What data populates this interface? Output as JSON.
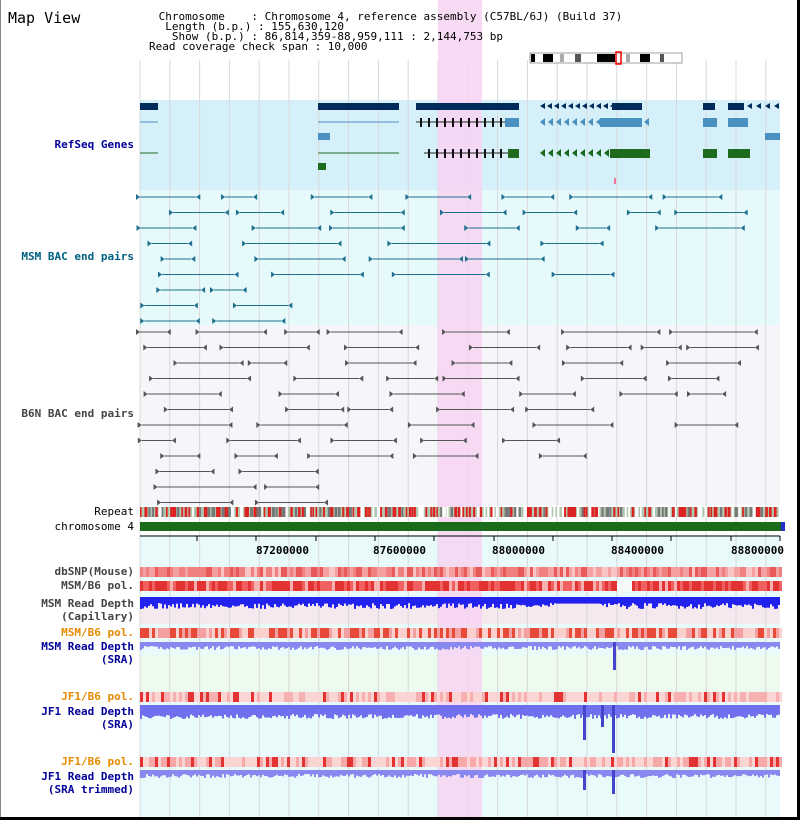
{
  "view_title": "Map View",
  "info": {
    "chromosome_line": " Chromosome    : Chromosome 4, reference assembly (C57BL/6J) (Build 37)",
    "length_line": "  Length (b.p.) : 155,630,120",
    "show_line": "   Show (b.p.) : 86,814,359-88,959,111 : 2,144,753 bp",
    "read_coverage_line": "Read coverage check span : 10,000"
  },
  "tracks": {
    "refseq": "RefSeq Genes",
    "msm_bac": "MSM BAC end pairs",
    "b6n_bac": "B6N BAC end pairs",
    "repeat": "Repeat",
    "chromosome": "chromosome 4",
    "dbsnp": "dbSNP(Mouse)",
    "msm_b6_pol_1": "MSM/B6 pol.",
    "msm_read_depth_cap_1": "MSM Read Depth",
    "msm_read_depth_cap_2": "(Capillary)",
    "msm_b6_pol_2": "MSM/B6 pol.",
    "msm_read_depth_sra_1": "MSM Read Depth",
    "msm_read_depth_sra_2": "(SRA)",
    "jf1_b6_pol_1": "JF1/B6 pol.",
    "jf1_read_depth_sra_1": "JF1 Read Depth",
    "jf1_read_depth_sra_2": "(SRA)",
    "jf1_b6_pol_2": "JF1/B6 pol.",
    "jf1_read_depth_trim_1": "JF1 Read Depth",
    "jf1_read_depth_trim_2": "(SRA trimmed)"
  },
  "axis": {
    "ticks": [
      "87200000",
      "87600000",
      "88000000",
      "88400000",
      "88800000"
    ]
  },
  "colors": {
    "refseq_label": "#000099",
    "msm_label": "#006080",
    "b6n_label": "#444444",
    "orange_label": "#e68a00",
    "blue_label": "#000099",
    "highlight": "#f7d4f2"
  }
}
